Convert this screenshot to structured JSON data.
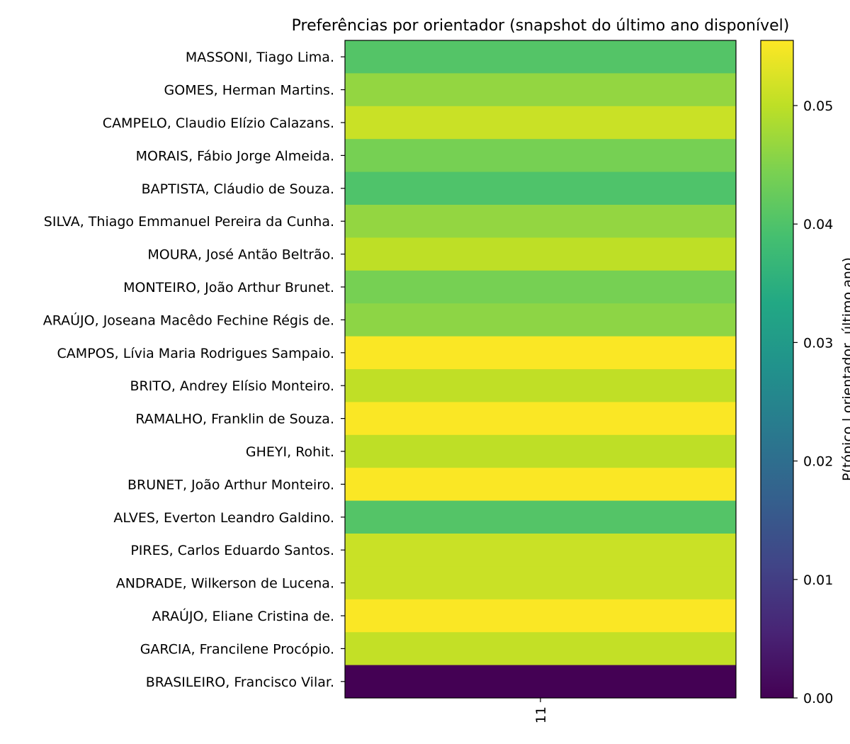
{
  "chart_data": {
    "type": "heatmap",
    "title": "Preferências por orientador (snapshot do último ano disponível)",
    "x_categories": [
      "11"
    ],
    "y_categories": [
      "MASSONI, Tiago Lima.",
      "GOMES, Herman Martins.",
      "CAMPELO, Claudio Elízio Calazans.",
      "MORAIS, Fábio Jorge Almeida.",
      "BAPTISTA, Cláudio de Souza.",
      "SILVA, Thiago Emmanuel Pereira da Cunha.",
      "MOURA, José Antão Beltrão.",
      "MONTEIRO, João Arthur Brunet.",
      "ARAÚJO, Joseana Macêdo Fechine Régis de.",
      "CAMPOS, Lívia Maria Rodrigues Sampaio.",
      "BRITO, Andrey Elísio Monteiro.",
      "RAMALHO, Franklin de Souza.",
      "GHEYI, Rohit.",
      "BRUNET, João Arthur Monteiro.",
      "ALVES, Everton Leandro Galdino.",
      "PIRES, Carlos Eduardo Santos.",
      "ANDRADE, Wilkerson de Lucena.",
      "ARAÚJO, Eliane Cristina de.",
      "GARCIA, Francilene Procópio.",
      "BRASILEIRO, Francisco Vilar."
    ],
    "values": [
      [
        0.0405
      ],
      [
        0.0465
      ],
      [
        0.051
      ],
      [
        0.044
      ],
      [
        0.04
      ],
      [
        0.0465
      ],
      [
        0.05
      ],
      [
        0.044
      ],
      [
        0.046
      ],
      [
        0.0552
      ],
      [
        0.0502
      ],
      [
        0.0552
      ],
      [
        0.05
      ],
      [
        0.0552
      ],
      [
        0.0405
      ],
      [
        0.051
      ],
      [
        0.051
      ],
      [
        0.0552
      ],
      [
        0.0505
      ],
      [
        0.0
      ]
    ],
    "colormap": "viridis",
    "colorbar": {
      "label": "P(tópico | orientador, último ano)",
      "range": [
        0,
        0.0555
      ],
      "ticks": [
        0.0,
        0.01,
        0.02,
        0.03,
        0.04,
        0.05
      ],
      "tick_labels": [
        "0.00",
        "0.01",
        "0.02",
        "0.03",
        "0.04",
        "0.05"
      ]
    }
  }
}
